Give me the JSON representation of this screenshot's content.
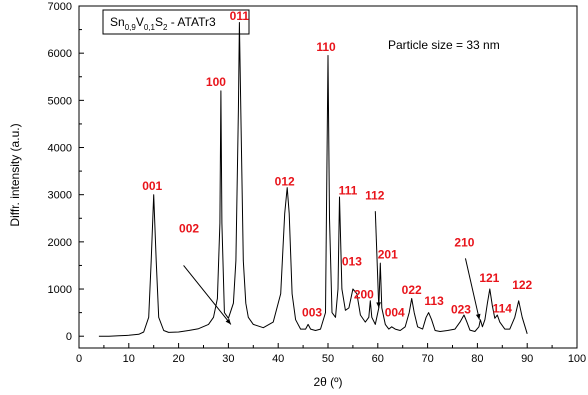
{
  "chart_data": {
    "type": "line",
    "xlabel": "2θ (º)",
    "ylabel": "Diffr. intensity (a.u.)",
    "xlim": [
      0,
      100
    ],
    "ylim": [
      -250,
      7000
    ],
    "xticks": [
      "0",
      "10",
      "20",
      "30",
      "40",
      "50",
      "60",
      "70",
      "80",
      "90",
      "100"
    ],
    "yticks": [
      "0",
      "1000",
      "2000",
      "3000",
      "4000",
      "5000",
      "6000",
      "7000"
    ],
    "grid": false,
    "legend": {
      "position": "top-left",
      "parts": [
        "Sn",
        "0,9",
        "V",
        "0,1",
        "S",
        "2",
        " - ATATr3"
      ]
    },
    "annotation": "Particle size = 33 nm",
    "series": [
      {
        "x": [
          4,
          6,
          8,
          10,
          12,
          13,
          14,
          14.5,
          15,
          15.5,
          16,
          17,
          18,
          20,
          22,
          24,
          26,
          27,
          27.8,
          28.3,
          28.5,
          28.7,
          29.2,
          30,
          31,
          31.5,
          32,
          32.2,
          32.5,
          33,
          33.5,
          34,
          35,
          37,
          39,
          40.5,
          41.3,
          41.8,
          42.2,
          42.8,
          43.5,
          44.5,
          45.5,
          46,
          46.5,
          47.5,
          48.5,
          49.5,
          50,
          50.3,
          50.8,
          51.5,
          52,
          52.3,
          52.8,
          53.5,
          54.2,
          55,
          55.8,
          56.5,
          57.5,
          58.2,
          58.5,
          58.8,
          59.5,
          60.2,
          60.5,
          60.8,
          61.5,
          62.2,
          62.8,
          63.5,
          64.5,
          65.5,
          66.3,
          66.8,
          67.3,
          68,
          69,
          69.7,
          70.2,
          70.8,
          71.5,
          72.5,
          74,
          75.5,
          76.5,
          77.3,
          77.9,
          78.5,
          79.5,
          80.3,
          80.6,
          81,
          81.5,
          82,
          82.5,
          83,
          83.5,
          84,
          84.5,
          85.5,
          86.5,
          87.5,
          88.3,
          89,
          90
        ],
        "y": [
          0,
          0,
          10,
          20,
          40,
          90,
          400,
          1600,
          3000,
          1600,
          400,
          120,
          80,
          90,
          120,
          160,
          250,
          400,
          800,
          2400,
          5200,
          2400,
          500,
          380,
          700,
          1600,
          4800,
          6650,
          4800,
          1600,
          700,
          400,
          250,
          180,
          300,
          900,
          2600,
          3150,
          2600,
          900,
          350,
          150,
          150,
          250,
          150,
          120,
          150,
          500,
          5950,
          2500,
          500,
          400,
          1000,
          2950,
          1000,
          550,
          600,
          1000,
          900,
          450,
          300,
          400,
          750,
          400,
          250,
          600,
          1550,
          600,
          250,
          150,
          200,
          150,
          120,
          200,
          500,
          800,
          500,
          200,
          150,
          400,
          500,
          350,
          120,
          100,
          120,
          150,
          300,
          450,
          300,
          130,
          100,
          200,
          350,
          200,
          350,
          700,
          1000,
          650,
          380,
          450,
          300,
          150,
          150,
          400,
          750,
          400,
          50
        ]
      }
    ],
    "peak_labels": [
      {
        "text": "001",
        "x": 14.7,
        "y": 3100
      },
      {
        "text": "100",
        "x": 27.5,
        "y": 5300
      },
      {
        "text": "011",
        "x": 32.2,
        "y": 6700
      },
      {
        "text": "012",
        "x": 41.3,
        "y": 3200
      },
      {
        "text": "110",
        "x": 49.6,
        "y": 6050
      },
      {
        "text": "111",
        "x": 54.0,
        "y": 3000
      },
      {
        "text": "112",
        "x": 59.4,
        "y": 2900
      },
      {
        "text": "201",
        "x": 62.0,
        "y": 1650
      },
      {
        "text": "013",
        "x": 54.8,
        "y": 1500
      },
      {
        "text": "200",
        "x": 57.2,
        "y": 800
      },
      {
        "text": "003",
        "x": 46.8,
        "y": 420
      },
      {
        "text": "004",
        "x": 63.4,
        "y": 420
      },
      {
        "text": "022",
        "x": 66.8,
        "y": 900
      },
      {
        "text": "113",
        "x": 71.3,
        "y": 660
      },
      {
        "text": "023",
        "x": 76.7,
        "y": 480
      },
      {
        "text": "210",
        "x": 77.4,
        "y": 1900
      },
      {
        "text": "121",
        "x": 82.4,
        "y": 1150
      },
      {
        "text": "114",
        "x": 85.0,
        "y": 500
      },
      {
        "text": "122",
        "x": 89.0,
        "y": 1000
      }
    ],
    "arrows": [
      {
        "label": "002",
        "from": [
          21,
          1500
        ],
        "to": [
          30.5,
          250
        ]
      },
      {
        "label": "112",
        "from": [
          59.5,
          2650
        ],
        "to": [
          60.2,
          600
        ]
      },
      {
        "label": "210",
        "from": [
          77.6,
          1650
        ],
        "to": [
          80.4,
          350
        ]
      }
    ],
    "peak_label_002": {
      "text": "002",
      "x": 22.1,
      "y": 2200
    }
  }
}
